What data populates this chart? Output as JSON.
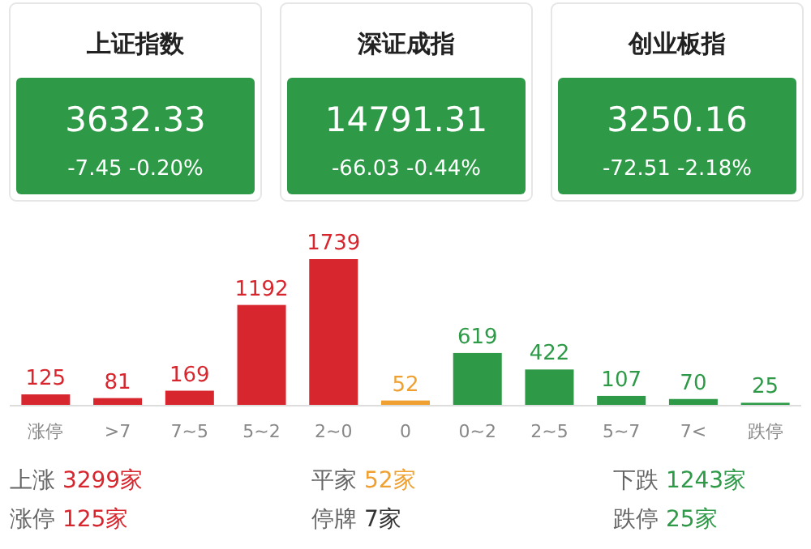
{
  "chart_data": [
    {
      "type": "other",
      "annotations": [
        "上证指数",
        "3632.33",
        "-7.45  -0.20%",
        "深证成指",
        "14791.31",
        "-66.03  -0.44%",
        "创业板指",
        "3250.16",
        "-72.51  -2.18%"
      ],
      "color": "#2e9a48"
    },
    {
      "type": "bar",
      "categories": [
        "涨停",
        ">7",
        "7~5",
        "5~2",
        "2~0",
        "0",
        "0~2",
        "2~5",
        "5~7",
        "7<",
        "跌停"
      ],
      "values": [
        125,
        81,
        169,
        1192,
        1739,
        52,
        619,
        422,
        107,
        70,
        25
      ],
      "colors": [
        "#d7262e",
        "#d7262e",
        "#d7262e",
        "#d7262e",
        "#d7262e",
        "#f0a030",
        "#2e9a48",
        "#2e9a48",
        "#2e9a48",
        "#2e9a48",
        "#2e9a48"
      ],
      "data_labels": true,
      "annotations": [
        "上涨 3299家",
        "平家 52家",
        "下跌 1243家",
        "涨停 125家",
        "停牌 7家",
        "跌停 25家"
      ]
    }
  ]
}
